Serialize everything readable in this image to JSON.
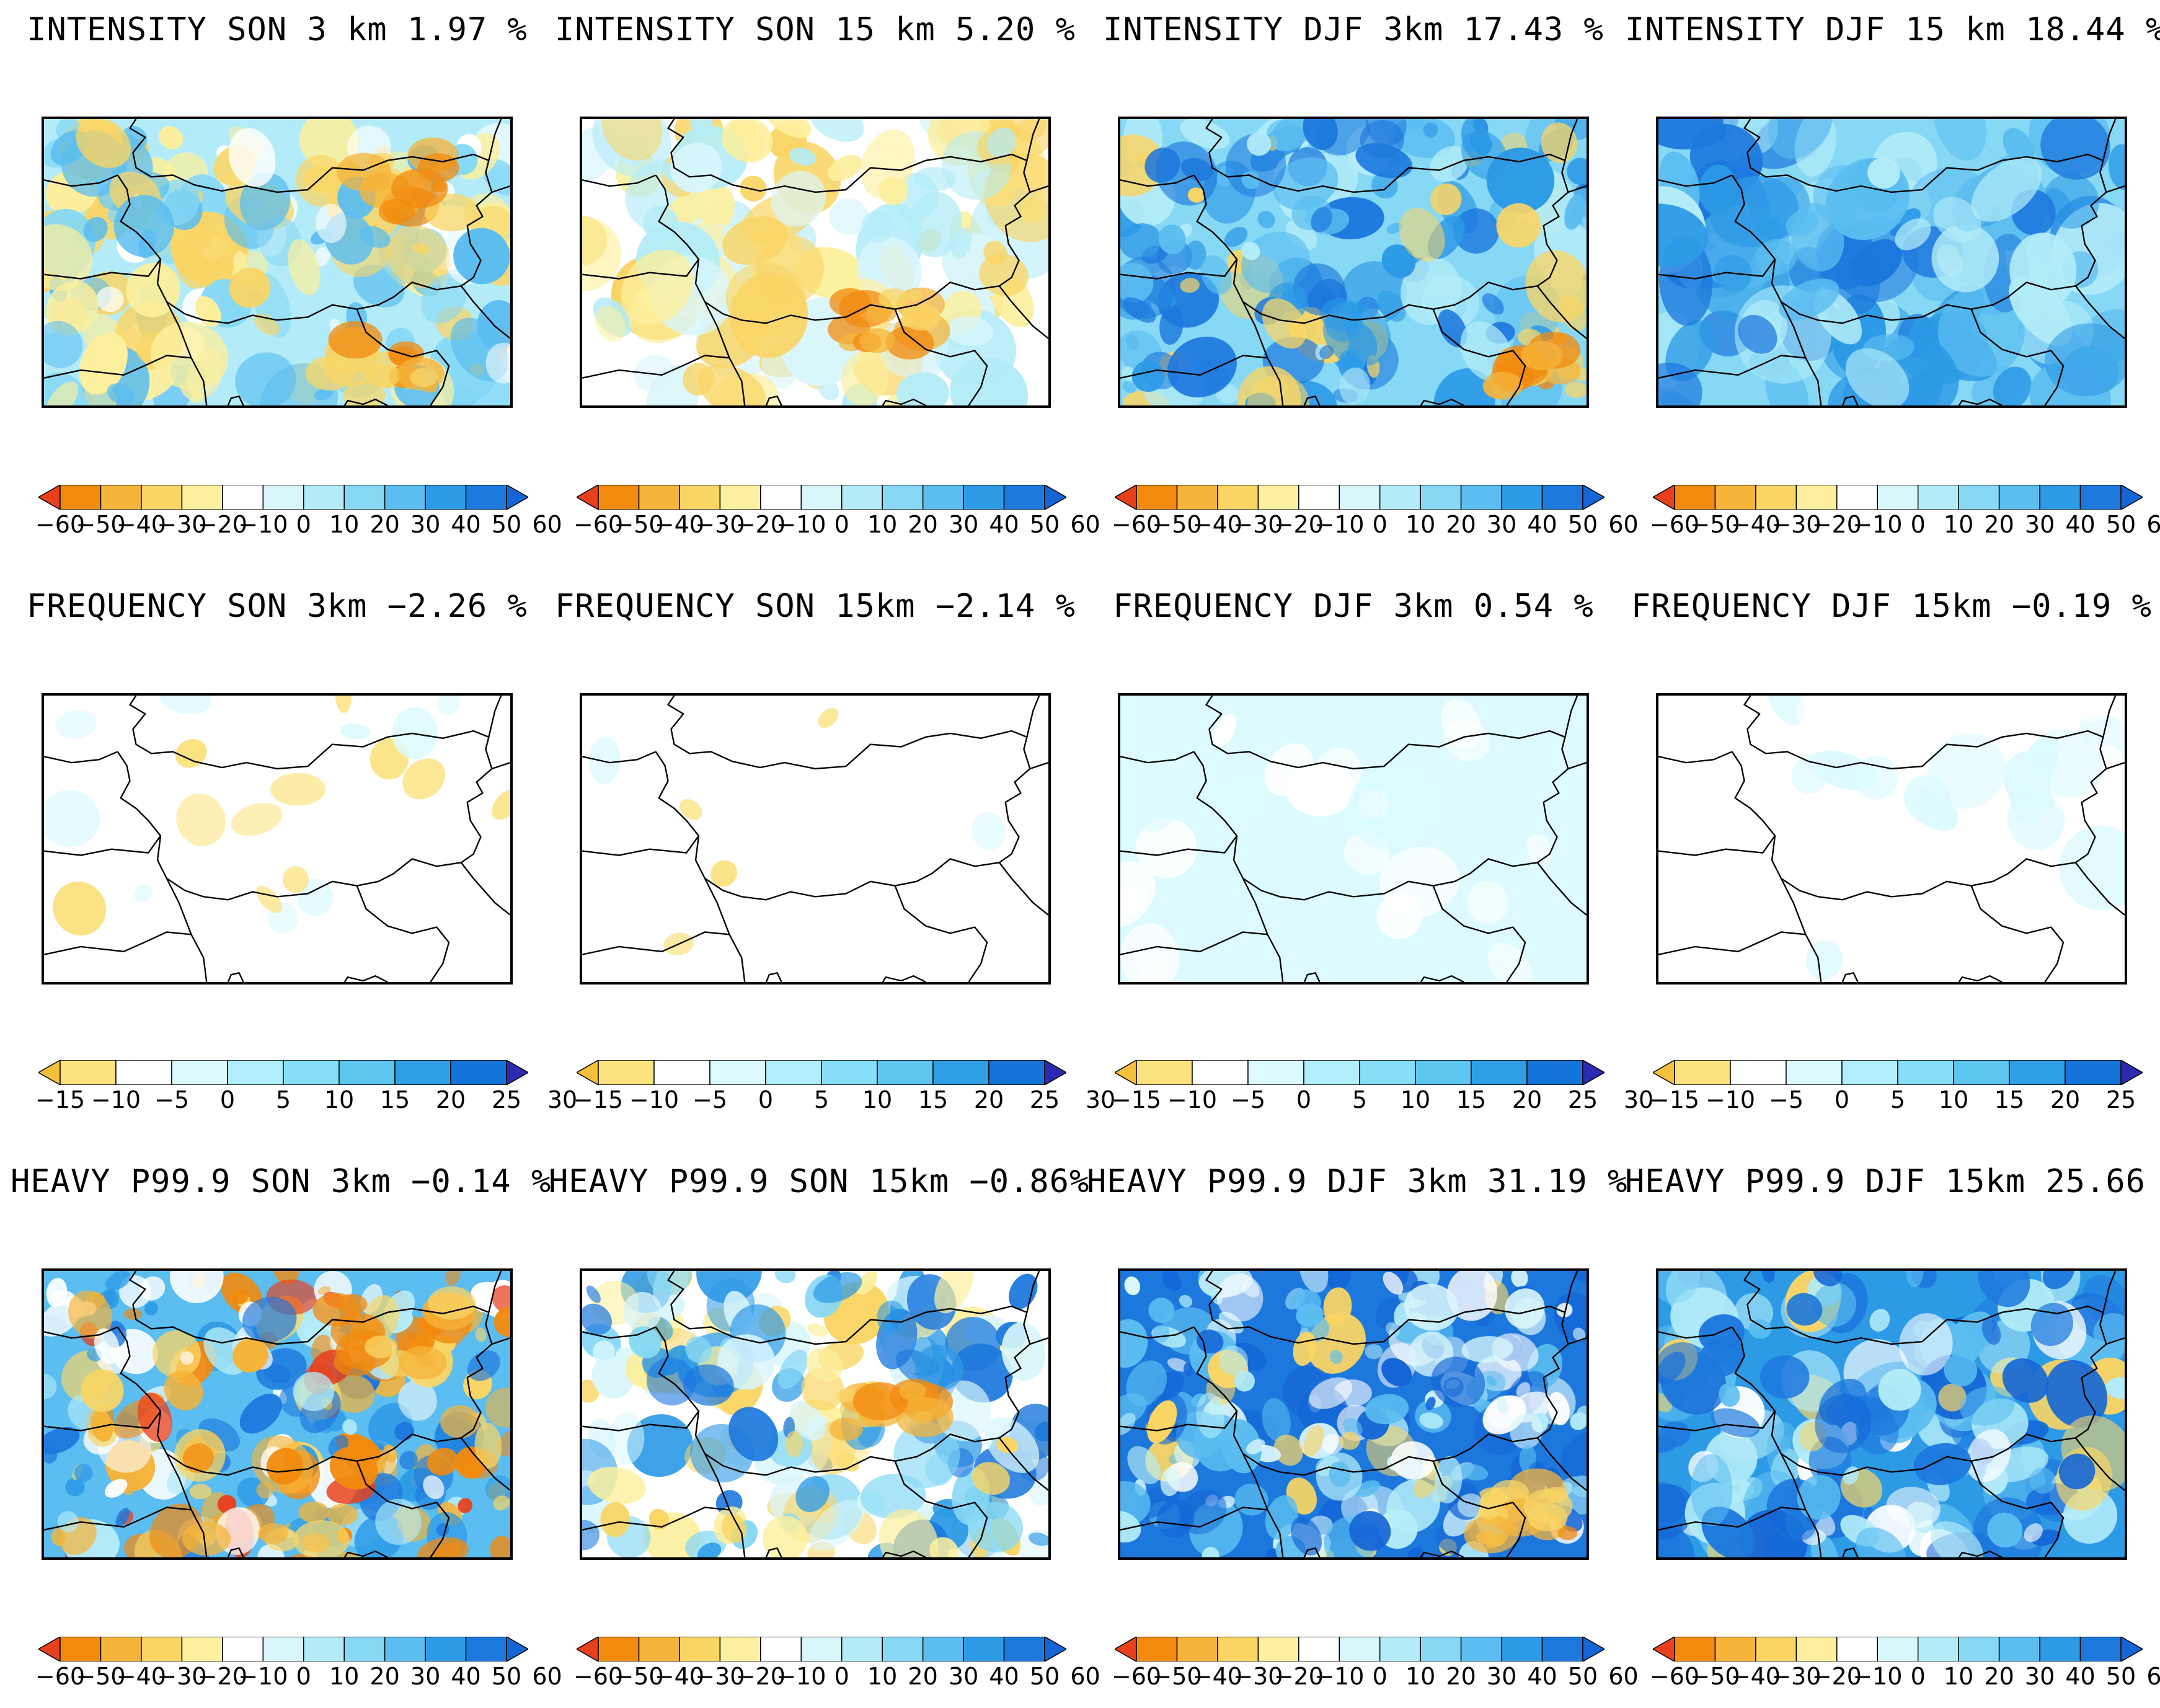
{
  "figure": {
    "rows": [
      {
        "name": "intensity",
        "scale": "diverging_60",
        "panels": [
          {
            "title": "INTENSITY SON 3 km 1.97 %",
            "pattern": "mixed_son"
          },
          {
            "title": "INTENSITY SON 15 km 5.20 %",
            "pattern": "light_son"
          },
          {
            "title": "INTENSITY DJF 3km 17.43 %",
            "pattern": "blue_djf"
          },
          {
            "title": "INTENSITY DJF 15 km 18.44 %",
            "pattern": "blue_smooth"
          }
        ]
      },
      {
        "name": "frequency",
        "scale": "frequency_30",
        "panels": [
          {
            "title": "FREQUENCY SON 3km −2.26 %",
            "pattern": "freq_yellow"
          },
          {
            "title": "FREQUENCY SON 15km −2.14 %",
            "pattern": "freq_white"
          },
          {
            "title": "FREQUENCY DJF 3km 0.54 %",
            "pattern": "freq_cyan"
          },
          {
            "title": "FREQUENCY DJF 15km −0.19 %",
            "pattern": "freq_cyan_light"
          }
        ]
      },
      {
        "name": "heavy",
        "scale": "diverging_60",
        "panels": [
          {
            "title": "HEAVY P99.9 SON 3km −0.14 %",
            "pattern": "heavy_mixed"
          },
          {
            "title": "HEAVY P99.9 SON 15km −0.86%",
            "pattern": "heavy_son15"
          },
          {
            "title": "HEAVY P99.9 DJF 3km 31.19 %",
            "pattern": "heavy_blue"
          },
          {
            "title": "HEAVY P99.9 DJF 15km 25.66 %",
            "pattern": "heavy_blue_smooth"
          }
        ]
      }
    ]
  },
  "color_scales": {
    "diverging_60": {
      "colors": [
        "#e8401c",
        "#f28a0d",
        "#f5b43a",
        "#f9d565",
        "#fcef9d",
        "#ffffff",
        "#d9f6fb",
        "#b3ecf8",
        "#86d8f5",
        "#5bbdf0",
        "#2d9ae6",
        "#1d78dd",
        "#1466d6"
      ],
      "tick_labels": [
        "−60",
        "−50",
        "−40",
        "−30",
        "−20",
        "−10",
        "0",
        "10",
        "20",
        "30",
        "40",
        "50",
        "60"
      ],
      "tick_values": [
        -60,
        -50,
        -40,
        -30,
        -20,
        -10,
        0,
        10,
        20,
        30,
        40,
        50,
        60
      ]
    },
    "frequency_30": {
      "colors": [
        "#f5c03c",
        "#fbe27e",
        "#ffffff",
        "#dcfaff",
        "#b1eefc",
        "#86def7",
        "#5cc5f0",
        "#2f9fe6",
        "#1374da",
        "#2b2ab0"
      ],
      "tick_labels": [
        "−15",
        "−10",
        "−5",
        "0",
        "5",
        "10",
        "15",
        "20",
        "25",
        "30"
      ],
      "tick_values": [
        -15,
        -10,
        -5,
        0,
        5,
        10,
        15,
        20,
        25,
        30
      ]
    }
  }
}
